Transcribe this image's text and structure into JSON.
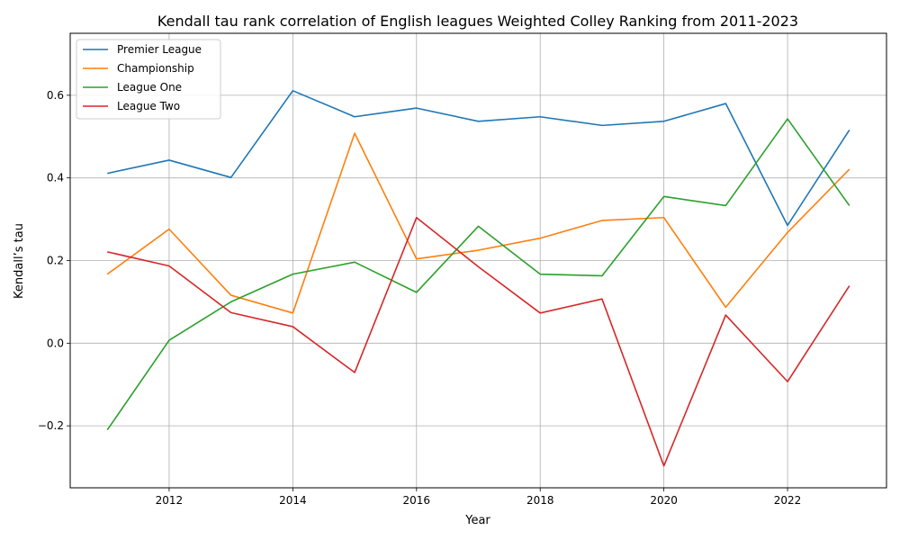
{
  "chart_data": {
    "type": "line",
    "title": "Kendall tau rank correlation of English leagues Weighted Colley Ranking from 2011-2023",
    "xlabel": "Year",
    "ylabel": "Kendall’s tau",
    "xlim": [
      2010.4,
      2023.6
    ],
    "ylim": [
      -0.35,
      0.75
    ],
    "xticks": [
      2012,
      2014,
      2016,
      2018,
      2020,
      2022
    ],
    "xtick_labels": [
      "2012",
      "2014",
      "2016",
      "2018",
      "2020",
      "2022"
    ],
    "yticks": [
      -0.2,
      0.0,
      0.2,
      0.4,
      0.6
    ],
    "ytick_labels": [
      "−0.2",
      "0.0",
      "0.2",
      "0.4",
      "0.6"
    ],
    "grid": true,
    "legend_position": "top-left",
    "x": [
      2011,
      2012,
      2013,
      2014,
      2015,
      2016,
      2017,
      2018,
      2019,
      2020,
      2021,
      2022,
      2023
    ],
    "series": [
      {
        "name": "Premier League",
        "color": "#1f77b4",
        "values": [
          0.411,
          0.443,
          0.401,
          0.611,
          0.548,
          0.569,
          0.537,
          0.548,
          0.527,
          0.537,
          0.58,
          0.285,
          0.516
        ]
      },
      {
        "name": "Championship",
        "color": "#ff7f0e",
        "values": [
          0.167,
          0.276,
          0.116,
          0.073,
          0.508,
          0.204,
          0.225,
          0.254,
          0.297,
          0.304,
          0.087,
          0.268,
          0.421
        ]
      },
      {
        "name": "League One",
        "color": "#2ca02c",
        "values": [
          -0.21,
          0.007,
          0.1,
          0.167,
          0.196,
          0.123,
          0.283,
          0.167,
          0.163,
          0.355,
          0.333,
          0.543,
          0.333
        ]
      },
      {
        "name": "League Two",
        "color": "#d62728",
        "values": [
          0.221,
          0.187,
          0.074,
          0.04,
          -0.071,
          0.304,
          0.185,
          0.073,
          0.107,
          -0.297,
          0.068,
          -0.093,
          0.139
        ]
      }
    ]
  }
}
